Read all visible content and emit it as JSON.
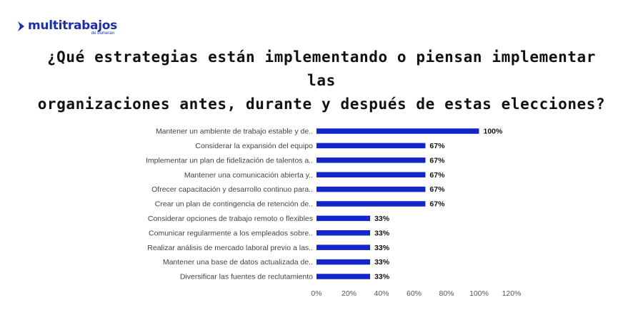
{
  "brand": {
    "name": "multitrabajos",
    "tagline": "de bumeran",
    "color": "#1c2fa8"
  },
  "header": {
    "title_line1": "¿Qué estrategias están implementando o piensan implementar las",
    "title_line2": "organizaciones antes, durante y después de estas elecciones?"
  },
  "chart_data": {
    "type": "bar",
    "orientation": "horizontal",
    "title": "¿Qué estrategias están implementando o piensan implementar las organizaciones antes, durante y después de estas elecciones?",
    "categories": [
      "Mantener un ambiente de trabajo estable y de..",
      "Considerar la expansión del equipo",
      "Implementar un plan de fidelización de talentos a..",
      "Mantener una comunicación abierta y..",
      "Ofrecer capacitación y desarrollo continuo para..",
      "Crear un plan de contingencia de retención de..",
      "Considerar opciones de trabajo remoto o flexibles",
      "Comunicar regularmente a los empleados sobre..",
      "Realizar análisis de mercado laboral previo a las..",
      "Mantener una base de datos actualizada de..",
      "Diversificar las fuentes de reclutamiento"
    ],
    "values": [
      100,
      67,
      67,
      67,
      67,
      67,
      33,
      33,
      33,
      33,
      33
    ],
    "value_labels": [
      "100%",
      "67%",
      "67%",
      "67%",
      "67%",
      "67%",
      "33%",
      "33%",
      "33%",
      "33%",
      "33%"
    ],
    "xlim": [
      0,
      120
    ],
    "xticks": [
      0,
      20,
      40,
      60,
      80,
      100,
      120
    ],
    "xtick_labels": [
      "0%",
      "20%",
      "40%",
      "60%",
      "80%",
      "100%",
      "120%"
    ],
    "bar_color": "#1326c9",
    "xlabel": "",
    "ylabel": "",
    "grid": false
  }
}
